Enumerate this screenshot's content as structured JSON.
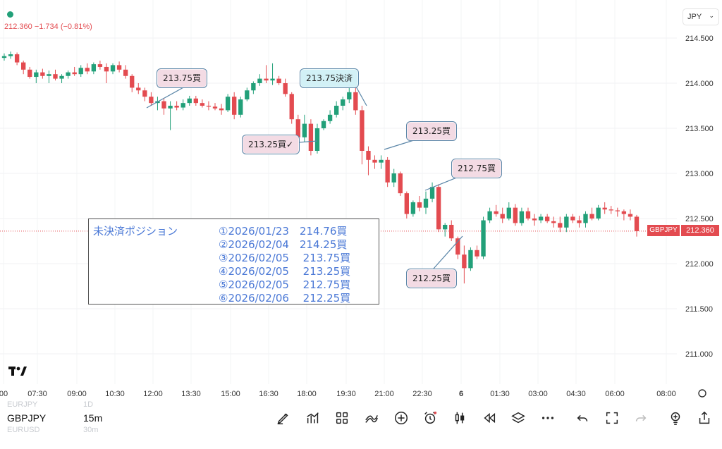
{
  "header": {
    "price": "212.360",
    "change": "−1.734",
    "change_pct": "(−0.81%)",
    "currency": "JPY"
  },
  "chart_data": {
    "type": "candlestick",
    "y_ticks": [
      "214.500",
      "214.000",
      "213.500",
      "213.000",
      "212.500",
      "212.000",
      "211.500",
      "211.000"
    ],
    "x_ticks": [
      "00",
      "07:30",
      "09:00",
      "10:30",
      "12:00",
      "13:30",
      "15:00",
      "16:30",
      "18:00",
      "19:30",
      "21:00",
      "22:30",
      "6",
      "01:30",
      "03:00",
      "04:30",
      "06:00",
      "08:00"
    ],
    "last_price": "212.360",
    "symbol_tag": "GBPJPY",
    "candles": [
      [
        214.28,
        214.33,
        214.25,
        214.3
      ],
      [
        214.3,
        214.35,
        214.27,
        214.32
      ],
      [
        214.32,
        214.34,
        214.2,
        214.23
      ],
      [
        214.23,
        214.25,
        214.1,
        214.15
      ],
      [
        214.15,
        214.18,
        214.05,
        214.07
      ],
      [
        214.07,
        214.15,
        214.0,
        214.12
      ],
      [
        214.12,
        214.16,
        214.05,
        214.08
      ],
      [
        214.08,
        214.14,
        214.0,
        214.1
      ],
      [
        214.1,
        214.15,
        214.03,
        214.05
      ],
      [
        214.05,
        214.1,
        214.0,
        214.08
      ],
      [
        214.08,
        214.14,
        214.05,
        214.12
      ],
      [
        214.12,
        214.18,
        214.08,
        214.1
      ],
      [
        214.1,
        214.2,
        214.07,
        214.17
      ],
      [
        214.17,
        214.22,
        214.1,
        214.13
      ],
      [
        214.13,
        214.23,
        214.1,
        214.21
      ],
      [
        214.21,
        214.25,
        214.15,
        214.18
      ],
      [
        214.18,
        214.22,
        214.0,
        214.13
      ],
      [
        214.13,
        214.22,
        214.1,
        214.2
      ],
      [
        214.2,
        214.24,
        214.12,
        214.15
      ],
      [
        214.15,
        214.2,
        214.05,
        214.08
      ],
      [
        214.08,
        214.1,
        213.9,
        213.95
      ],
      [
        213.95,
        214.0,
        213.88,
        213.92
      ],
      [
        213.92,
        213.95,
        213.8,
        213.85
      ],
      [
        213.85,
        213.9,
        213.75,
        213.78
      ],
      [
        213.78,
        213.85,
        213.7,
        213.8
      ],
      [
        213.8,
        213.83,
        213.65,
        213.72
      ],
      [
        213.72,
        213.8,
        213.48,
        213.75
      ],
      [
        213.75,
        213.8,
        213.7,
        213.73
      ],
      [
        213.73,
        213.82,
        213.7,
        213.78
      ],
      [
        213.78,
        213.86,
        213.75,
        213.83
      ],
      [
        213.83,
        213.86,
        213.75,
        213.78
      ],
      [
        213.78,
        213.82,
        213.73,
        213.75
      ],
      [
        213.75,
        213.8,
        213.7,
        213.74
      ],
      [
        213.74,
        213.78,
        213.7,
        213.72
      ],
      [
        213.72,
        213.77,
        213.65,
        213.7
      ],
      [
        213.7,
        213.88,
        213.68,
        213.85
      ],
      [
        213.85,
        213.9,
        213.6,
        213.65
      ],
      [
        213.65,
        213.85,
        213.62,
        213.82
      ],
      [
        213.82,
        213.95,
        213.8,
        213.92
      ],
      [
        213.92,
        214.02,
        213.88,
        214.0
      ],
      [
        214.0,
        214.1,
        213.97,
        214.05
      ],
      [
        214.05,
        214.2,
        214.0,
        214.03
      ],
      [
        214.03,
        214.22,
        213.98,
        214.05
      ],
      [
        214.05,
        214.08,
        213.98,
        214.0
      ],
      [
        214.0,
        214.05,
        213.85,
        213.88
      ],
      [
        213.88,
        213.9,
        213.55,
        213.6
      ],
      [
        213.6,
        213.65,
        213.35,
        213.4
      ],
      [
        213.4,
        213.65,
        213.35,
        213.55
      ],
      [
        213.55,
        213.6,
        213.2,
        213.25
      ],
      [
        213.25,
        213.55,
        213.22,
        213.5
      ],
      [
        213.5,
        213.6,
        213.48,
        213.58
      ],
      [
        213.58,
        213.7,
        213.55,
        213.65
      ],
      [
        213.65,
        213.8,
        213.62,
        213.75
      ],
      [
        213.75,
        213.85,
        213.7,
        213.82
      ],
      [
        213.82,
        213.95,
        213.78,
        213.9
      ],
      [
        213.9,
        213.95,
        213.65,
        213.7
      ],
      [
        213.7,
        213.75,
        213.1,
        213.25
      ],
      [
        213.25,
        213.3,
        212.98,
        213.15
      ],
      [
        213.15,
        213.2,
        213.05,
        213.12
      ],
      [
        213.12,
        213.2,
        213.05,
        213.15
      ],
      [
        213.15,
        213.18,
        212.85,
        212.9
      ],
      [
        212.9,
        213.05,
        212.85,
        213.0
      ],
      [
        213.0,
        213.02,
        212.75,
        212.78
      ],
      [
        212.78,
        212.8,
        212.5,
        212.55
      ],
      [
        212.55,
        212.7,
        212.52,
        212.68
      ],
      [
        212.68,
        212.75,
        212.58,
        212.62
      ],
      [
        212.62,
        212.8,
        212.55,
        212.72
      ],
      [
        212.72,
        212.9,
        212.68,
        212.85
      ],
      [
        212.85,
        212.88,
        212.35,
        212.38
      ],
      [
        212.38,
        212.45,
        212.3,
        212.43
      ],
      [
        212.43,
        212.48,
        212.25,
        212.28
      ],
      [
        212.28,
        212.3,
        212.05,
        212.1
      ],
      [
        212.1,
        212.2,
        211.78,
        211.95
      ],
      [
        211.95,
        212.18,
        211.92,
        212.15
      ],
      [
        212.15,
        212.2,
        212.05,
        212.08
      ],
      [
        212.08,
        212.52,
        212.05,
        212.48
      ],
      [
        212.48,
        212.62,
        212.45,
        212.58
      ],
      [
        212.58,
        212.65,
        212.52,
        212.55
      ],
      [
        212.55,
        212.62,
        212.45,
        212.5
      ],
      [
        212.5,
        212.68,
        212.48,
        212.62
      ],
      [
        212.62,
        212.66,
        212.42,
        212.45
      ],
      [
        212.45,
        212.62,
        212.42,
        212.58
      ],
      [
        212.58,
        212.62,
        212.48,
        212.5
      ],
      [
        212.5,
        212.55,
        212.42,
        212.48
      ],
      [
        212.48,
        212.55,
        212.45,
        212.52
      ],
      [
        212.52,
        212.55,
        212.45,
        212.47
      ],
      [
        212.47,
        212.52,
        212.4,
        212.45
      ],
      [
        212.45,
        212.52,
        212.35,
        212.4
      ],
      [
        212.4,
        212.55,
        212.35,
        212.52
      ],
      [
        212.52,
        212.55,
        212.45,
        212.48
      ],
      [
        212.48,
        212.53,
        212.4,
        212.45
      ],
      [
        212.45,
        212.58,
        212.4,
        212.55
      ],
      [
        212.55,
        212.62,
        212.48,
        212.5
      ],
      [
        212.5,
        212.65,
        212.48,
        212.62
      ],
      [
        212.62,
        212.68,
        212.55,
        212.6
      ],
      [
        212.6,
        212.64,
        212.55,
        212.59
      ],
      [
        212.59,
        212.62,
        212.52,
        212.58
      ],
      [
        212.58,
        212.6,
        212.48,
        212.55
      ],
      [
        212.55,
        212.6,
        212.48,
        212.52
      ],
      [
        212.52,
        212.54,
        212.3,
        212.36
      ]
    ]
  },
  "annotations": [
    {
      "text": "213.75買",
      "style": "pink"
    },
    {
      "text": "213.75決済",
      "style": "cyan"
    },
    {
      "text": "213.25買✓",
      "style": "pink"
    },
    {
      "text": "213.25買",
      "style": "pink"
    },
    {
      "text": "212.75買",
      "style": "pink"
    },
    {
      "text": "212.25買",
      "style": "pink"
    }
  ],
  "positions": {
    "title": "未決済ポジション",
    "rows": [
      "①2026/01/23　214.76買",
      "②2026/02/04　214.25買",
      "③2026/02/05　 213.75買",
      "④2026/02/05　 213.25買",
      "⑤2026/02/05　 212.75買",
      "⑥2026/02/06　 212.25買"
    ]
  },
  "bottom": {
    "symbol": "GBPJPY",
    "interval": "15m",
    "ghost_symbol_1": "EURJPY",
    "ghost_interval_1": "1D",
    "ghost_symbol_2": "EURUSD",
    "ghost_interval_2": "30m"
  },
  "toolbar": [
    "pen-icon",
    "indicators-icon",
    "templates-icon",
    "strategy-icon",
    "add-icon",
    "alert-icon",
    "candles-icon",
    "replay-icon",
    "layers-icon",
    "more-icon",
    "undo-icon",
    "fullscreen-icon",
    "redo-icon",
    "alert-bulb-icon",
    "share-icon"
  ],
  "colors": {
    "up": "#22a079",
    "down": "#e34b50",
    "annot_pink": "#f3dbe4",
    "annot_cyan": "#d2f1f6",
    "position_text": "#4a78d6"
  }
}
